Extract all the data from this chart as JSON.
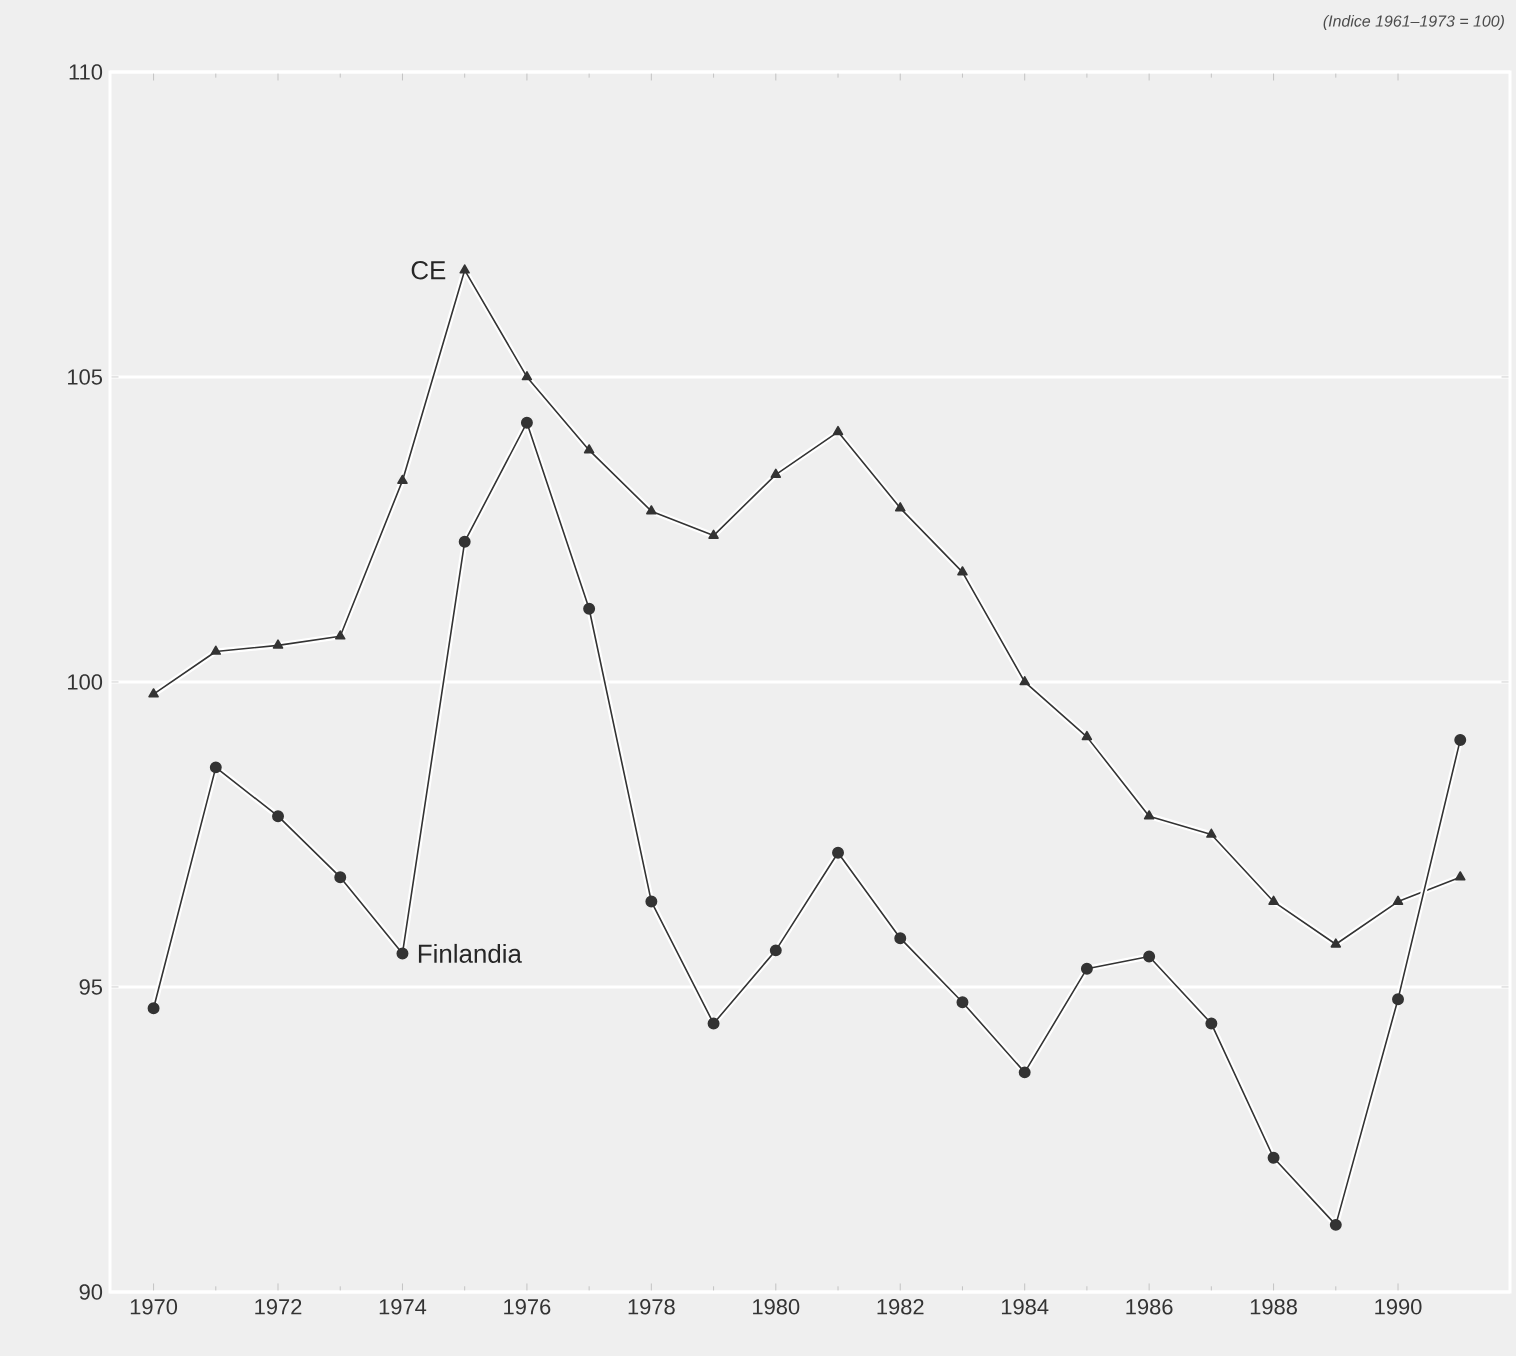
{
  "chart_data": {
    "type": "line",
    "subtitle": "(Indice 1961–1973 = 100)",
    "x": [
      1970,
      1971,
      1972,
      1973,
      1974,
      1975,
      1976,
      1977,
      1978,
      1979,
      1980,
      1981,
      1982,
      1983,
      1984,
      1985,
      1986,
      1987,
      1988,
      1989,
      1990,
      1991
    ],
    "series": [
      {
        "color": "#333333",
        "marker": "triangle",
        "values": [
          99.8,
          100.5,
          100.6,
          100.75,
          103.3,
          106.75,
          105.0,
          103.8,
          102.8,
          102.4,
          103.4,
          104.1,
          102.85,
          101.8,
          100.0,
          99.1,
          97.8,
          97.5,
          96.4,
          95.7,
          96.4,
          96.8
        ]
      },
      {
        "color": "#333333",
        "marker": "circle",
        "values": [
          94.65,
          98.6,
          97.8,
          96.8,
          95.55,
          102.3,
          104.25,
          101.2,
          96.4,
          94.4,
          95.6,
          97.2,
          95.8,
          94.75,
          93.6,
          95.3,
          95.5,
          94.4,
          92.2,
          91.1,
          94.8,
          99.05
        ]
      }
    ],
    "annotations": [
      {
        "text": "CE",
        "x": 1975,
        "y": 106.75
      },
      {
        "text": "Finlandia",
        "x": 1974,
        "y": 95.55
      }
    ],
    "xlim": [
      1969.3,
      1991.8
    ],
    "xticks": [
      1970,
      1972,
      1974,
      1976,
      1978,
      1980,
      1982,
      1984,
      1986,
      1988,
      1990
    ],
    "ylim": [
      90,
      110
    ],
    "yticks": [
      90,
      95,
      100,
      105,
      110
    ],
    "grid": "y",
    "line_style": "solid"
  }
}
